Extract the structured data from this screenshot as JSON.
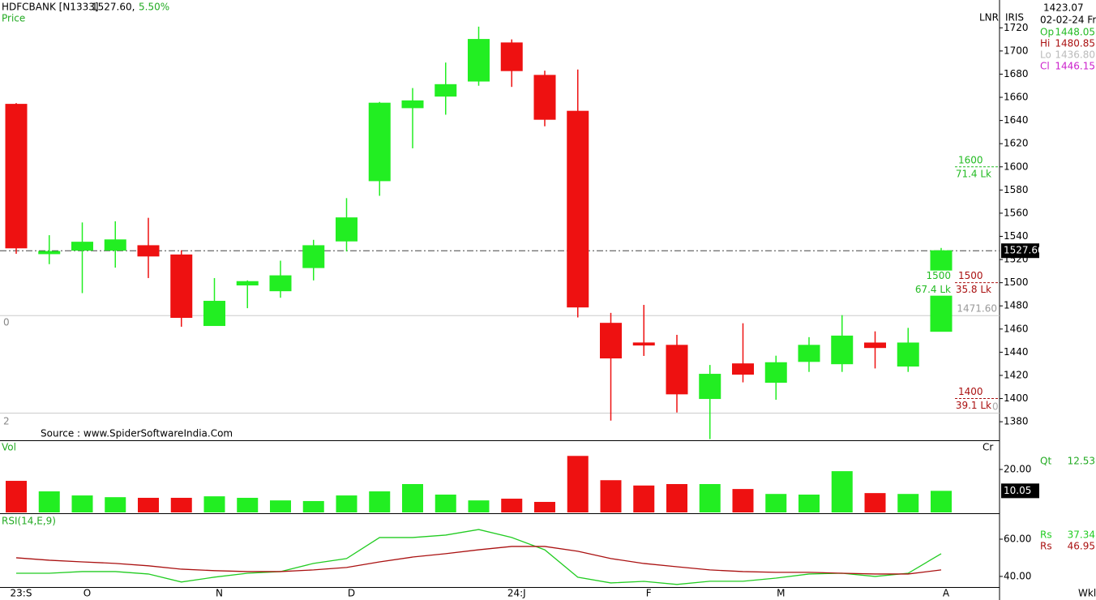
{
  "header": {
    "symbol": "HDFCBANK [N1333]",
    "price": "1527.60,",
    "change": "5.50%",
    "pane": "Price",
    "mode": "LNR",
    "tool": "IRIS",
    "source": "Source : www.SpiderSoftwareIndia.Com",
    "period": "Wkl",
    "marks": [
      "0",
      "2",
      "0"
    ]
  },
  "readout": {
    "crosshair_price": "1423.07",
    "date": "02-02-24 Fri",
    "rows": [
      {
        "label": "Op",
        "value": "1448.05",
        "color": "#22bb22"
      },
      {
        "label": "Hi",
        "value": "1480.85",
        "color": "#aa1111"
      },
      {
        "label": "Lo",
        "value": "1436.80",
        "color": "#bbbbbb"
      },
      {
        "label": "Cl",
        "value": "1446.15",
        "color": "#cc22cc"
      }
    ]
  },
  "chart_data": [
    {
      "type": "candlestick",
      "categories": [
        "23:S",
        null,
        "O",
        null,
        null,
        null,
        "N",
        null,
        null,
        null,
        "D",
        null,
        null,
        null,
        null,
        "24:J",
        null,
        null,
        null,
        "F",
        null,
        null,
        null,
        "M",
        null,
        null,
        null,
        null,
        "A"
      ],
      "open": [
        1654,
        1525,
        1528,
        1528,
        1532,
        1524,
        1463,
        1498,
        1493,
        1513,
        1536,
        1588,
        1651,
        1661,
        1674,
        1707,
        1679,
        1648,
        1465,
        1448.05,
        1446,
        1400,
        1430,
        1414,
        1432,
        1430,
        1448,
        1428,
        1458
      ],
      "high": [
        1655,
        1541,
        1552,
        1553,
        1556,
        1528,
        1504,
        1502,
        1519,
        1537,
        1573,
        1656,
        1668,
        1690,
        1721,
        1710,
        1683,
        1684,
        1474,
        1480.85,
        1455,
        1429,
        1465,
        1437,
        1453,
        1472,
        1458,
        1461,
        1530
      ],
      "low": [
        1525,
        1516,
        1491,
        1513,
        1504,
        1462,
        1463,
        1478,
        1487,
        1502,
        1527,
        1575,
        1616,
        1645,
        1670,
        1669,
        1635,
        1470,
        1381,
        1436.8,
        1388,
        1365,
        1414,
        1399,
        1423,
        1423,
        1426,
        1423,
        1458
      ],
      "close": [
        1530,
        1527,
        1535,
        1537,
        1523,
        1470,
        1484,
        1501,
        1506,
        1532,
        1556,
        1655,
        1657,
        1671,
        1710,
        1683,
        1641,
        1479,
        1435,
        1446.15,
        1404,
        1421,
        1421,
        1431,
        1446,
        1454,
        1444,
        1448,
        1527.6
      ],
      "colors": {
        "up": "#22ee22",
        "down": "#ee1111"
      },
      "ylim": [
        1364,
        1744
      ],
      "yticks": [
        1380,
        1400,
        1420,
        1440,
        1460,
        1480,
        1500,
        1520,
        1540,
        1560,
        1580,
        1600,
        1620,
        1640,
        1660,
        1680,
        1700,
        1720
      ],
      "last_price": {
        "value": 1527.6,
        "label": "1527.60"
      },
      "level_line": {
        "value": 1471.6,
        "label": "1471.60"
      },
      "annotations": [
        {
          "price": 1600,
          "volume": "71.4 Lk",
          "color": "#22bb22"
        },
        {
          "price": 1500,
          "volume": "67.4 Lk",
          "color": "#22bb22"
        },
        {
          "price": 1500,
          "volume": "35.8 Lk",
          "color": "#aa1111"
        },
        {
          "price": 1400,
          "volume": "39.1 Lk",
          "color": "#aa1111"
        }
      ]
    },
    {
      "type": "bar",
      "title": "Vol",
      "unit": "Cr",
      "readout_label": "Qt",
      "readout_index": 19,
      "values": [
        14.7,
        9.8,
        7.9,
        7.1,
        6.8,
        6.8,
        7.5,
        6.8,
        5.6,
        5.3,
        7.9,
        9.8,
        13.2,
        8.3,
        5.6,
        6.4,
        4.9,
        26.3,
        15.0,
        12.53,
        13.2,
        13.2,
        10.9,
        8.6,
        8.3,
        19.2,
        9.0,
        8.6,
        10.05
      ],
      "ylim": [
        0,
        33.2
      ],
      "yticks": [
        {
          "value": 20,
          "label": "20.00"
        }
      ]
    },
    {
      "type": "line",
      "title": "RSI(14,E,9)",
      "readout_index": 19,
      "series": [
        {
          "name": "Rs",
          "color": "#22cc22",
          "values": [
            41.7,
            41.7,
            42.6,
            42.6,
            41.3,
            37,
            39.6,
            41.7,
            42.6,
            47,
            49.6,
            60.9,
            60.9,
            62.2,
            65.2,
            60.9,
            54.3,
            39.6,
            36.5,
            37.34,
            35.7,
            37.4,
            37.4,
            39.1,
            41.3,
            41.7,
            40,
            41.7,
            52.2
          ]
        },
        {
          "name": "Rs",
          "color": "#aa1111",
          "values": [
            50,
            48.7,
            47.8,
            47,
            45.7,
            43.9,
            43.1,
            42.6,
            42.6,
            43.5,
            44.8,
            47.8,
            50.4,
            52.2,
            54.3,
            56.1,
            56.1,
            53.5,
            49.6,
            46.95,
            45.2,
            43.5,
            42.6,
            42.2,
            42.2,
            41.7,
            41.3,
            41.3,
            43.5
          ]
        }
      ],
      "ylim": [
        34.3,
        73.5
      ],
      "yticks": [
        {
          "value": 60,
          "label": "60.00"
        },
        {
          "value": 40,
          "label": "40.00"
        }
      ]
    }
  ]
}
